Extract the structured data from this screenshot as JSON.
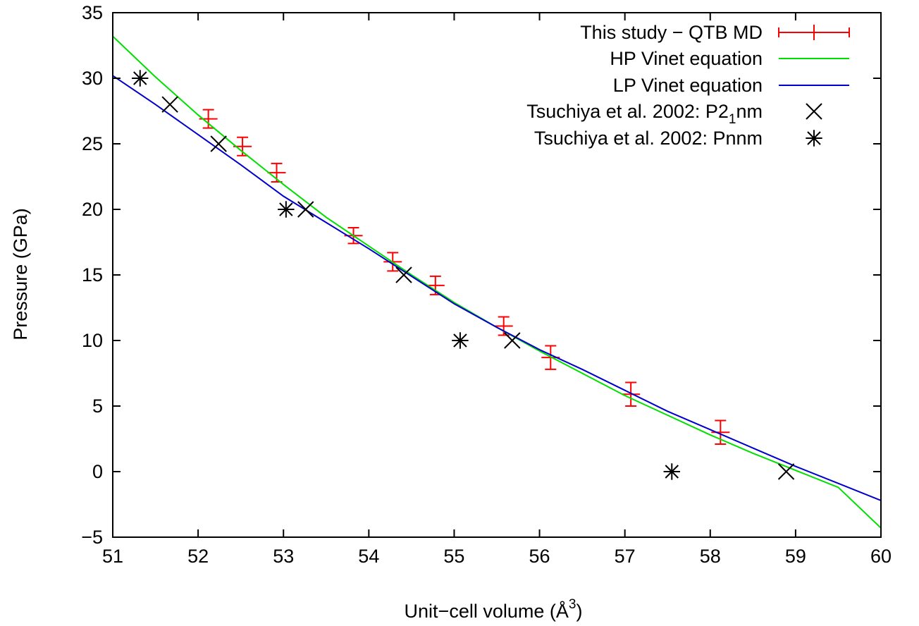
{
  "chart_data": {
    "type": "scatter",
    "xlabel": "Unit−cell volume (Å",
    "xlabel_sup": "3",
    "xlabel_end": ")",
    "ylabel": "Pressure (GPa)",
    "xlim": [
      51,
      60
    ],
    "ylim": [
      -5,
      35
    ],
    "x_ticks": [
      51,
      52,
      53,
      54,
      55,
      56,
      57,
      58,
      59,
      60
    ],
    "y_ticks": [
      -5,
      0,
      5,
      10,
      15,
      20,
      25,
      30,
      35
    ],
    "y_tick_labels": [
      "−5",
      "0",
      "5",
      "10",
      "15",
      "20",
      "25",
      "30",
      "35"
    ],
    "grid": false,
    "legend_position": "top-right",
    "series": [
      {
        "name": "This study − QTB MD",
        "kind": "errorbar",
        "color": "#ff0000",
        "points": [
          {
            "x": 52.12,
            "y": 26.9,
            "err": 0.7
          },
          {
            "x": 52.52,
            "y": 24.8,
            "err": 0.7
          },
          {
            "x": 52.92,
            "y": 22.8,
            "err": 0.7
          },
          {
            "x": 53.82,
            "y": 18.0,
            "err": 0.6
          },
          {
            "x": 54.28,
            "y": 16.0,
            "err": 0.7
          },
          {
            "x": 54.78,
            "y": 14.2,
            "err": 0.7
          },
          {
            "x": 55.58,
            "y": 11.1,
            "err": 0.7
          },
          {
            "x": 56.13,
            "y": 8.7,
            "err": 0.9
          },
          {
            "x": 57.07,
            "y": 5.9,
            "err": 0.9
          },
          {
            "x": 58.12,
            "y": 3.0,
            "err": 0.9
          }
        ]
      },
      {
        "name": "HP Vinet equation",
        "kind": "line",
        "color": "#00e000",
        "x": [
          51.0,
          51.5,
          52.0,
          52.5,
          53.0,
          53.5,
          54.0,
          54.5,
          55.0,
          55.5,
          56.0,
          56.5,
          57.0,
          57.5,
          58.0,
          58.5,
          59.0,
          59.5,
          60.0
        ],
        "y": [
          33.2,
          30.1,
          27.2,
          24.5,
          21.9,
          19.4,
          17.2,
          15.0,
          12.9,
          11.0,
          9.2,
          7.5,
          5.8,
          4.3,
          2.8,
          1.4,
          0.1,
          -1.2,
          -4.3
        ]
      },
      {
        "name": "LP Vinet equation",
        "kind": "line",
        "color": "#0000cc",
        "x": [
          51.0,
          51.5,
          52.0,
          52.5,
          53.0,
          53.5,
          54.0,
          54.5,
          55.0,
          55.5,
          56.0,
          56.5,
          57.0,
          57.5,
          58.0,
          58.5,
          59.0,
          59.5,
          60.0
        ],
        "y": [
          30.2,
          28.0,
          25.7,
          23.4,
          21.0,
          19.0,
          17.0,
          14.9,
          12.8,
          11.0,
          9.3,
          7.8,
          6.2,
          4.6,
          3.2,
          1.8,
          0.4,
          -0.9,
          -2.2
        ]
      },
      {
        "name": "Tsuchiya et al. 2002: P2",
        "name_sub": "1",
        "name_end": "nm",
        "kind": "marker-x",
        "color": "#000000",
        "points": [
          {
            "x": 51.67,
            "y": 28.0
          },
          {
            "x": 52.24,
            "y": 25.0
          },
          {
            "x": 53.26,
            "y": 20.0
          },
          {
            "x": 54.41,
            "y": 15.0
          },
          {
            "x": 55.68,
            "y": 10.0
          },
          {
            "x": 58.89,
            "y": 0.0
          }
        ]
      },
      {
        "name": "Tsuchiya et al. 2002: Pnnm",
        "kind": "marker-star",
        "color": "#000000",
        "points": [
          {
            "x": 51.32,
            "y": 30.0
          },
          {
            "x": 53.03,
            "y": 20.0
          },
          {
            "x": 55.07,
            "y": 10.0
          },
          {
            "x": 57.55,
            "y": 0.0
          }
        ]
      }
    ]
  }
}
